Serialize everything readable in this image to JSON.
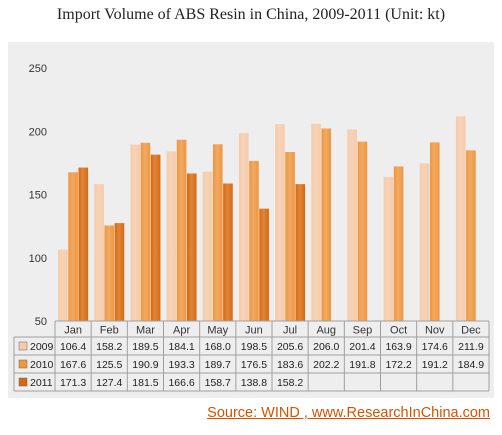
{
  "title": "Import Volume of ABS Resin in China, 2009-2011 (Unit: kt)",
  "source": "Source: WIND , www.ResearchInChina.com",
  "colors": {
    "2009": "#f7cba9",
    "2010": "#f0963d",
    "2011": "#d9680b",
    "panel": "#eeeeee"
  },
  "chart_data": {
    "type": "bar",
    "title": "Import Volume of ABS Resin in China, 2009-2011 (Unit: kt)",
    "categories": [
      "Jan",
      "Feb",
      "Mar",
      "Apr",
      "May",
      "Jun",
      "Jul",
      "Aug",
      "Sep",
      "Oct",
      "Nov",
      "Dec"
    ],
    "series": [
      {
        "name": "2009",
        "values": [
          106.4,
          158.2,
          189.5,
          184.1,
          168.0,
          198.5,
          205.6,
          206.0,
          201.4,
          163.9,
          174.6,
          211.9
        ]
      },
      {
        "name": "2010",
        "values": [
          167.6,
          125.5,
          190.9,
          193.3,
          189.7,
          176.5,
          183.6,
          202.2,
          191.8,
          172.2,
          191.2,
          184.9
        ]
      },
      {
        "name": "2011",
        "values": [
          171.3,
          127.4,
          181.5,
          166.6,
          158.7,
          138.8,
          158.2,
          null,
          null,
          null,
          null,
          null
        ]
      }
    ],
    "ylim": [
      50,
      250
    ],
    "yticks": [
      50,
      100,
      150,
      200,
      250
    ],
    "grid": false,
    "legend": "data-table"
  }
}
